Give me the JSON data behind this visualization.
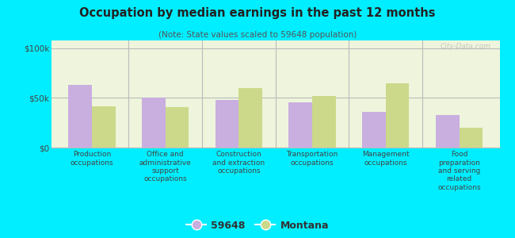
{
  "title": "Occupation by median earnings in the past 12 months",
  "subtitle": "(Note: State values scaled to 59648 population)",
  "categories": [
    "Production\noccupations",
    "Office and\nadministrative\nsupport\noccupations",
    "Construction\nand extraction\noccupations",
    "Transportation\noccupations",
    "Management\noccupations",
    "Food\npreparation\nand serving\nrelated\noccupations"
  ],
  "values_59648": [
    63000,
    50000,
    48000,
    46000,
    36000,
    33000
  ],
  "values_montana": [
    42000,
    41000,
    60000,
    52000,
    65000,
    20000
  ],
  "color_59648": "#c9aee0",
  "color_montana": "#ccd98a",
  "background_chart": "#eef5dc",
  "background_fig": "#00eeff",
  "ylabel_ticks": [
    "$0",
    "$50k",
    "$100k"
  ],
  "ytick_vals": [
    0,
    50000,
    100000
  ],
  "ylim": [
    0,
    108000
  ],
  "legend_labels": [
    "59648",
    "Montana"
  ],
  "watermark": "City-Data.com",
  "bar_width": 0.32
}
